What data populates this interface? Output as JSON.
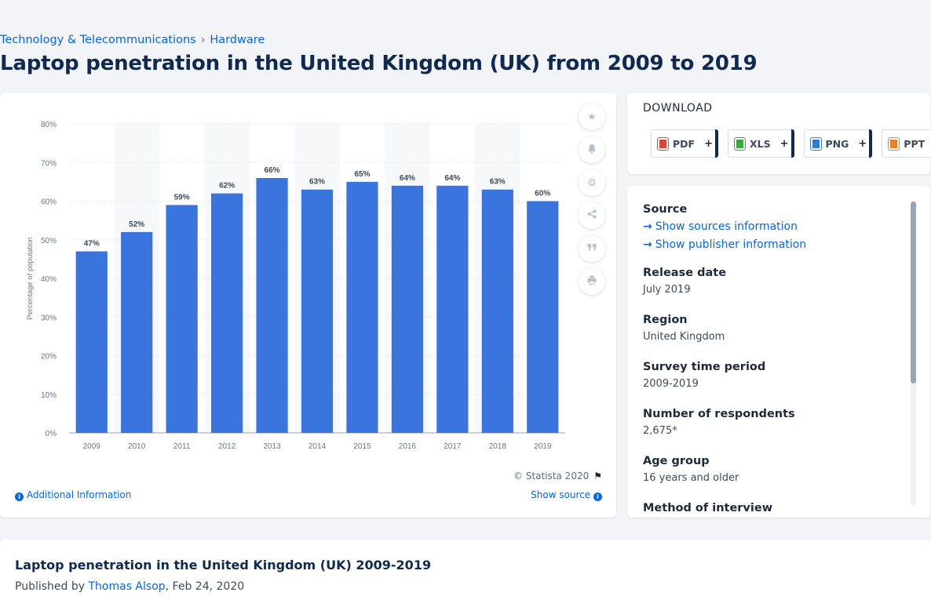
{
  "breadcrumb": {
    "items": [
      "Technology & Telecommunications",
      "Hardware"
    ],
    "separator": "›"
  },
  "page_title": "Laptop penetration in the United Kingdom (UK) from 2009 to 2019",
  "chart_data": {
    "type": "bar",
    "categories": [
      "2009",
      "2010",
      "2011",
      "2012",
      "2013",
      "2014",
      "2015",
      "2016",
      "2017",
      "2018",
      "2019"
    ],
    "values": [
      47,
      52,
      59,
      62,
      66,
      63,
      65,
      64,
      64,
      63,
      60
    ],
    "data_labels": [
      "47%",
      "52%",
      "59%",
      "62%",
      "66%",
      "63%",
      "65%",
      "64%",
      "64%",
      "63%",
      "60%"
    ],
    "ylabel": "Percentage of population",
    "ylim": [
      0,
      80
    ],
    "y_ticks": [
      "0%",
      "10%",
      "20%",
      "30%",
      "40%",
      "50%",
      "60%",
      "70%",
      "80%"
    ],
    "grid": true,
    "bar_color": "#3a74dd"
  },
  "chart_footer": {
    "copyright": "© Statista 2020",
    "additional_info": "Additional Information",
    "show_source": "Show source"
  },
  "toolbar": [
    "star-icon",
    "bell-icon",
    "gear-icon",
    "share-icon",
    "quote-icon",
    "print-icon"
  ],
  "download": {
    "title": "DOWNLOAD",
    "buttons": [
      {
        "label": "PDF",
        "color": "#d9463b"
      },
      {
        "label": "XLS",
        "color": "#3fa845"
      },
      {
        "label": "PNG",
        "color": "#2f7ad8"
      },
      {
        "label": "PPT",
        "color": "#e5822c"
      }
    ],
    "plus": "+"
  },
  "details": {
    "source_label": "Source",
    "show_sources": "Show sources information",
    "show_publisher": "Show publisher information",
    "release_label": "Release date",
    "release_value": "July 2019",
    "region_label": "Region",
    "region_value": "United Kingdom",
    "survey_label": "Survey time period",
    "survey_value": "2009-2019",
    "respondents_label": "Number of respondents",
    "respondents_value": "2,675*",
    "age_label": "Age group",
    "age_value": "16 years and older",
    "method_label": "Method of interview"
  },
  "bottom": {
    "title": "Laptop penetration in the United Kingdom (UK) 2009-2019",
    "published_prefix": "Published by ",
    "author": "Thomas Alsop",
    "date": ", Feb 24, 2020"
  }
}
